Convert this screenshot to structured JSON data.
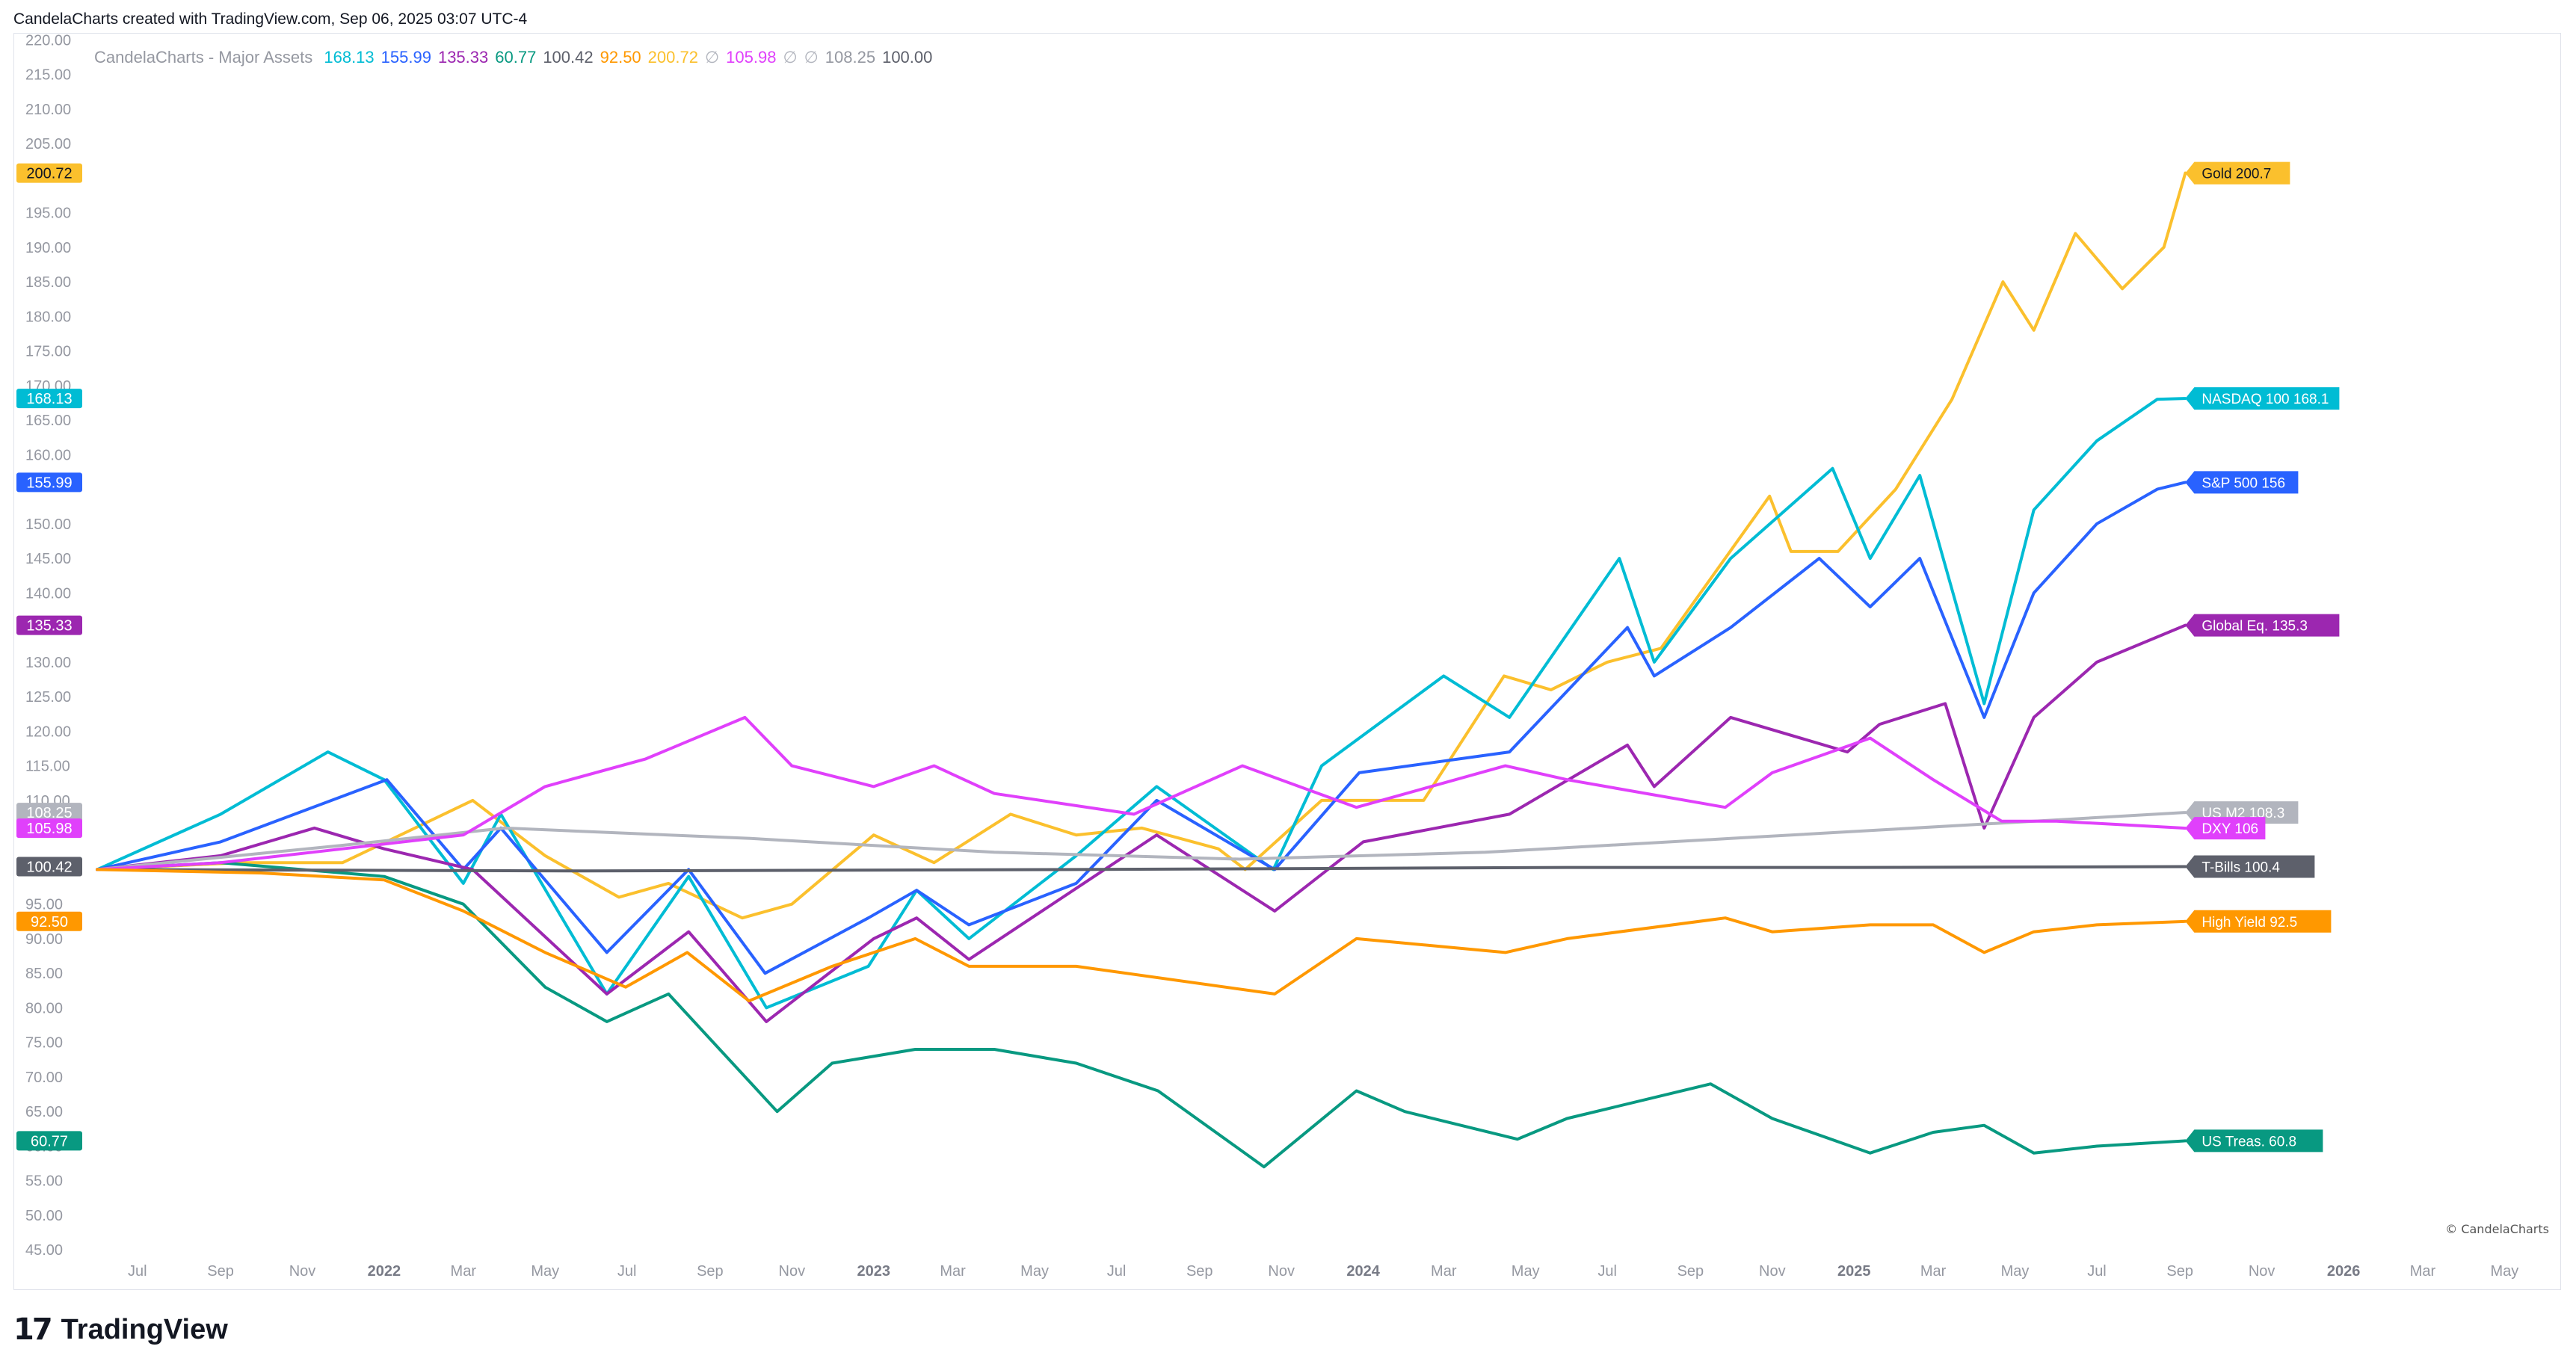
{
  "header": {
    "text": "CandelaCharts created with TradingView.com, Sep 06, 2025 03:07 UTC-4"
  },
  "legend": {
    "title": "CandelaCharts - Major Assets",
    "items": [
      {
        "text": "168.13",
        "color": "#00bcd4"
      },
      {
        "text": "155.99",
        "color": "#2962ff"
      },
      {
        "text": "135.33",
        "color": "#9c27b0"
      },
      {
        "text": "60.77",
        "color": "#089981"
      },
      {
        "text": "100.42",
        "color": "#5d606b"
      },
      {
        "text": "92.50",
        "color": "#ff9800"
      },
      {
        "text": "200.72",
        "color": "#fbc02d"
      },
      {
        "text": "∅",
        "color": "#b2b5be"
      },
      {
        "text": "105.98",
        "color": "#e040fb"
      },
      {
        "text": "∅",
        "color": "#b2b5be"
      },
      {
        "text": "∅",
        "color": "#b2b5be"
      },
      {
        "text": "108.25",
        "color": "#9598a1"
      },
      {
        "text": "100.00",
        "color": "#5d606b"
      }
    ]
  },
  "footer": {
    "logo_mark": "17",
    "brand": "TradingView"
  },
  "copyright": "© CandelaCharts",
  "chart_data": {
    "type": "line",
    "xlabel": "",
    "ylabel": "",
    "ylim": [
      42,
      221
    ],
    "xlim": [
      "2021-06-01",
      "2026-06-01"
    ],
    "grid": false,
    "legend_placement": "top-left",
    "y_ticks": [
      45,
      50,
      55,
      60,
      65,
      70,
      75,
      80,
      85,
      90,
      95,
      110,
      115,
      120,
      125,
      130,
      140,
      145,
      150,
      160,
      165,
      170,
      175,
      180,
      185,
      190,
      195,
      205,
      210,
      215,
      220
    ],
    "x_ticks": [
      {
        "label": "Jul",
        "date": "2021-07-01",
        "bold": false
      },
      {
        "label": "Sep",
        "date": "2021-09-01",
        "bold": false
      },
      {
        "label": "Nov",
        "date": "2021-11-01",
        "bold": false
      },
      {
        "label": "2022",
        "date": "2022-01-01",
        "bold": true
      },
      {
        "label": "Mar",
        "date": "2022-03-01",
        "bold": false
      },
      {
        "label": "May",
        "date": "2022-05-01",
        "bold": false
      },
      {
        "label": "Jul",
        "date": "2022-07-01",
        "bold": false
      },
      {
        "label": "Sep",
        "date": "2022-09-01",
        "bold": false
      },
      {
        "label": "Nov",
        "date": "2022-11-01",
        "bold": false
      },
      {
        "label": "2023",
        "date": "2023-01-01",
        "bold": true
      },
      {
        "label": "Mar",
        "date": "2023-03-01",
        "bold": false
      },
      {
        "label": "May",
        "date": "2023-05-01",
        "bold": false
      },
      {
        "label": "Jul",
        "date": "2023-07-01",
        "bold": false
      },
      {
        "label": "Sep",
        "date": "2023-09-01",
        "bold": false
      },
      {
        "label": "Nov",
        "date": "2023-11-01",
        "bold": false
      },
      {
        "label": "2024",
        "date": "2024-01-01",
        "bold": true
      },
      {
        "label": "Mar",
        "date": "2024-03-01",
        "bold": false
      },
      {
        "label": "May",
        "date": "2024-05-01",
        "bold": false
      },
      {
        "label": "Jul",
        "date": "2024-07-01",
        "bold": false
      },
      {
        "label": "Sep",
        "date": "2024-09-01",
        "bold": false
      },
      {
        "label": "Nov",
        "date": "2024-11-01",
        "bold": false
      },
      {
        "label": "2025",
        "date": "2025-01-01",
        "bold": true
      },
      {
        "label": "Mar",
        "date": "2025-03-01",
        "bold": false
      },
      {
        "label": "May",
        "date": "2025-05-01",
        "bold": false
      },
      {
        "label": "Jul",
        "date": "2025-07-01",
        "bold": false
      },
      {
        "label": "Sep",
        "date": "2025-09-01",
        "bold": false
      },
      {
        "label": "Nov",
        "date": "2025-11-01",
        "bold": false
      },
      {
        "label": "2026",
        "date": "2026-01-01",
        "bold": true
      },
      {
        "label": "Mar",
        "date": "2026-03-01",
        "bold": false
      },
      {
        "label": "May",
        "date": "2026-05-01",
        "bold": false
      }
    ],
    "series": [
      {
        "name": "Gold",
        "end_label": "Gold 200.7",
        "axis_label": "200.72",
        "last": 200.72,
        "color": "#fbc02d",
        "label_text_color": "#131722",
        "x": [
          "2021-06-01",
          "2021-09-15",
          "2021-12-01",
          "2022-03-08",
          "2022-05-01",
          "2022-06-25",
          "2022-08-01",
          "2022-09-25",
          "2022-11-01",
          "2023-01-01",
          "2023-02-15",
          "2023-04-13",
          "2023-06-01",
          "2023-07-20",
          "2023-09-15",
          "2023-10-05",
          "2023-12-01",
          "2024-02-15",
          "2024-04-15",
          "2024-05-20",
          "2024-07-01",
          "2024-08-10",
          "2024-10-30",
          "2024-11-15",
          "2024-12-20",
          "2025-02-01",
          "2025-03-15",
          "2025-04-22",
          "2025-05-15",
          "2025-06-15",
          "2025-07-20",
          "2025-08-20",
          "2025-09-05"
        ],
        "y": [
          100,
          101,
          101,
          110,
          102,
          96,
          98,
          93,
          95,
          105,
          101,
          108,
          105,
          106,
          103,
          100,
          110,
          110,
          128,
          126,
          130,
          132,
          154,
          146,
          146,
          155,
          168,
          185,
          178,
          192,
          184,
          190,
          200.72
        ]
      },
      {
        "name": "NASDAQ 100",
        "end_label": "NASDAQ 100 168.1",
        "axis_label": "168.13",
        "last": 168.13,
        "color": "#00bcd4",
        "label_text_color": "#ffffff",
        "x": [
          "2021-06-01",
          "2021-09-01",
          "2021-11-20",
          "2022-01-01",
          "2022-03-01",
          "2022-03-29",
          "2022-06-16",
          "2022-08-16",
          "2022-10-13",
          "2022-12-28",
          "2023-02-02",
          "2023-03-13",
          "2023-06-01",
          "2023-07-31",
          "2023-10-26",
          "2023-12-01",
          "2024-03-01",
          "2024-04-19",
          "2024-07-10",
          "2024-08-05",
          "2024-10-01",
          "2024-12-16",
          "2025-01-13",
          "2025-02-19",
          "2025-04-08",
          "2025-05-15",
          "2025-07-01",
          "2025-08-15",
          "2025-09-05"
        ],
        "y": [
          100,
          108,
          117,
          113,
          98,
          108,
          82,
          99,
          80,
          86,
          97,
          90,
          102,
          112,
          100,
          115,
          128,
          122,
          145,
          130,
          145,
          158,
          145,
          157,
          124,
          152,
          162,
          168,
          168.13
        ]
      },
      {
        "name": "S&P 500",
        "end_label": "S&P 500 156",
        "axis_label": "155.99",
        "last": 155.99,
        "color": "#2962ff",
        "label_text_color": "#ffffff",
        "x": [
          "2021-06-01",
          "2021-09-01",
          "2022-01-03",
          "2022-03-01",
          "2022-03-29",
          "2022-06-16",
          "2022-08-16",
          "2022-10-12",
          "2022-12-28",
          "2023-02-02",
          "2023-03-13",
          "2023-06-01",
          "2023-07-31",
          "2023-10-27",
          "2023-12-29",
          "2024-04-19",
          "2024-07-16",
          "2024-08-05",
          "2024-10-01",
          "2024-12-06",
          "2025-01-13",
          "2025-02-19",
          "2025-04-08",
          "2025-05-15",
          "2025-07-01",
          "2025-08-15",
          "2025-09-05"
        ],
        "y": [
          100,
          104,
          113,
          100,
          106,
          88,
          100,
          85,
          93,
          97,
          92,
          98,
          110,
          100,
          114,
          117,
          135,
          128,
          135,
          145,
          138,
          145,
          122,
          140,
          150,
          155,
          155.99
        ]
      },
      {
        "name": "Global Eq.",
        "end_label": "Global Eq. 135.3",
        "axis_label": "135.33",
        "last": 135.33,
        "color": "#9c27b0",
        "label_text_color": "#ffffff",
        "x": [
          "2021-06-01",
          "2021-09-01",
          "2021-11-10",
          "2022-01-01",
          "2022-03-08",
          "2022-06-16",
          "2022-08-16",
          "2022-10-13",
          "2023-01-01",
          "2023-02-02",
          "2023-03-13",
          "2023-07-31",
          "2023-10-27",
          "2024-01-01",
          "2024-04-19",
          "2024-07-16",
          "2024-08-05",
          "2024-10-01",
          "2024-12-27",
          "2025-01-20",
          "2025-03-10",
          "2025-04-08",
          "2025-05-15",
          "2025-07-01",
          "2025-09-05"
        ],
        "y": [
          100,
          102,
          106,
          103,
          100,
          82,
          91,
          78,
          90,
          93,
          87,
          105,
          94,
          104,
          108,
          118,
          112,
          122,
          117,
          121,
          124,
          106,
          122,
          130,
          135.33
        ]
      },
      {
        "name": "US Treas.",
        "end_label": "US Treas. 60.8",
        "axis_label": "60.77",
        "last": 60.77,
        "color": "#089981",
        "label_text_color": "#ffffff",
        "x": [
          "2021-06-01",
          "2021-09-01",
          "2022-01-01",
          "2022-03-01",
          "2022-05-01",
          "2022-06-16",
          "2022-08-01",
          "2022-10-21",
          "2022-12-01",
          "2023-02-01",
          "2023-04-01",
          "2023-06-01",
          "2023-08-01",
          "2023-10-19",
          "2023-12-27",
          "2024-02-01",
          "2024-04-25",
          "2024-06-01",
          "2024-09-16",
          "2024-11-01",
          "2025-01-13",
          "2025-03-01",
          "2025-04-08",
          "2025-05-15",
          "2025-07-01",
          "2025-09-05"
        ],
        "y": [
          100,
          101,
          99,
          95,
          83,
          78,
          82,
          65,
          72,
          74,
          74,
          72,
          68,
          57,
          68,
          65,
          61,
          64,
          69,
          64,
          59,
          62,
          63,
          59,
          60,
          60.77
        ]
      },
      {
        "name": "T-Bills",
        "end_label": "T-Bills 100.4",
        "axis_label": "100.42",
        "last": 100.42,
        "color": "#5d606b",
        "label_text_color": "#ffffff",
        "x": [
          "2021-06-01",
          "2022-06-01",
          "2023-06-01",
          "2024-06-01",
          "2025-01-01",
          "2025-09-05"
        ],
        "y": [
          100,
          99.8,
          100,
          100.3,
          100.3,
          100.42
        ]
      },
      {
        "name": "US M2",
        "end_label": "US M2 108.3",
        "axis_label": "108.25",
        "last": 108.25,
        "color": "#b2b5be",
        "label_text_color": "#ffffff",
        "x": [
          "2021-06-01",
          "2021-12-01",
          "2022-04-01",
          "2022-10-01",
          "2023-04-01",
          "2023-10-01",
          "2024-04-01",
          "2024-10-01",
          "2025-04-01",
          "2025-09-05"
        ],
        "y": [
          100,
          103.5,
          106,
          104.5,
          102.5,
          101.5,
          102.5,
          104.5,
          106.5,
          108.25
        ]
      },
      {
        "name": "DXY",
        "end_label": "DXY 106",
        "axis_label": "105.98",
        "last": 105.98,
        "color": "#e040fb",
        "label_text_color": "#ffffff",
        "x": [
          "2021-06-01",
          "2021-09-01",
          "2021-12-01",
          "2022-03-01",
          "2022-05-01",
          "2022-07-15",
          "2022-09-27",
          "2022-11-01",
          "2023-01-01",
          "2023-02-15",
          "2023-04-01",
          "2023-07-14",
          "2023-10-03",
          "2023-12-27",
          "2024-04-16",
          "2024-06-01",
          "2024-09-27",
          "2024-11-01",
          "2025-01-13",
          "2025-03-01",
          "2025-04-21",
          "2025-06-01",
          "2025-09-05"
        ],
        "y": [
          100,
          101,
          103,
          105,
          112,
          116,
          122,
          115,
          112,
          115,
          111,
          108,
          115,
          109,
          115,
          113,
          109,
          114,
          119,
          113,
          107,
          107,
          105.98
        ]
      },
      {
        "name": "High Yield",
        "end_label": "High Yield 92.5",
        "axis_label": "92.50",
        "last": 92.5,
        "color": "#ff9800",
        "label_text_color": "#ffffff",
        "x": [
          "2021-06-01",
          "2021-10-01",
          "2022-01-01",
          "2022-03-01",
          "2022-05-01",
          "2022-06-30",
          "2022-08-15",
          "2022-09-30",
          "2022-12-01",
          "2023-02-01",
          "2023-03-13",
          "2023-06-01",
          "2023-10-27",
          "2023-12-27",
          "2024-04-16",
          "2024-06-01",
          "2024-09-27",
          "2024-11-01",
          "2025-01-13",
          "2025-03-01",
          "2025-04-08",
          "2025-05-15",
          "2025-07-01",
          "2025-09-05"
        ],
        "y": [
          100,
          99.5,
          98.5,
          94,
          88,
          83,
          88,
          81,
          86,
          90,
          86,
          86,
          82,
          90,
          88,
          90,
          93,
          91,
          92,
          92,
          88,
          91,
          92,
          92.5
        ]
      }
    ]
  }
}
